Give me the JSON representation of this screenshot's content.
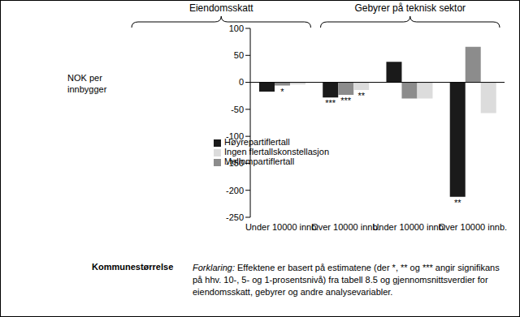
{
  "chart_data": {
    "type": "bar",
    "categories": [
      "Under 10000 innb.",
      "Over 10000 innb.",
      "Under 10000 innb.",
      "Over 10000 innb."
    ],
    "groups": [
      {
        "label": "Eiendomsskatt",
        "span": [
          0,
          1
        ]
      },
      {
        "label": "Gebyrer på teknisk sektor",
        "span": [
          2,
          3
        ]
      }
    ],
    "series": [
      {
        "name": "Høyrepartiflertall",
        "color": "#1a1a1a",
        "values": [
          -17,
          -28,
          38,
          -212
        ],
        "significance": [
          null,
          "***",
          null,
          "**"
        ]
      },
      {
        "name": "Mellompartiflertall",
        "color": "#8c8c8c",
        "values": [
          -6,
          -23,
          -30,
          66
        ],
        "significance": [
          "*",
          "***",
          null,
          null
        ]
      },
      {
        "name": "Ingen flertallskonstellasjon",
        "color": "#dcdcdc",
        "values": [
          -4,
          -14,
          -30,
          -57
        ],
        "significance": [
          null,
          "**",
          null,
          null
        ]
      }
    ],
    "ylim": [
      -250,
      100
    ],
    "yticks": [
      -250,
      -200,
      -150,
      -100,
      -50,
      0,
      50,
      100
    ],
    "y_label": "NOK per innbygger",
    "x_label": "Kommunestørrelse",
    "footnote_label": "Forklaring:",
    "footnote": "Effektene er basert på estimatene (der *, ** og *** angir signifikans på hhv. 10-, 5- og 1-prosentsnivå) fra tabell 8.5 og gjennomsnittsverdier for eiendomsskatt, gebyrer og andre analysevariabler.",
    "legend": "lower left",
    "grid": false
  }
}
